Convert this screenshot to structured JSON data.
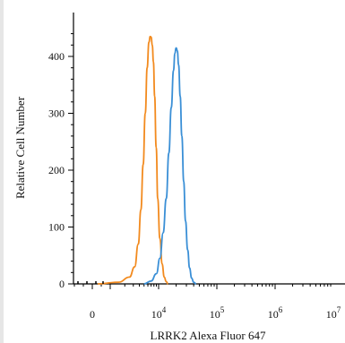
{
  "chart_data": {
    "type": "line",
    "title": "",
    "xlabel": "LRRK2 Alexa Fluor 647",
    "ylabel": "Relative Cell Number",
    "xscale": "biexponential (log above 10^3)",
    "xlim": [
      -1000,
      10000000
    ],
    "ylim": [
      0,
      440
    ],
    "grid": false,
    "legend": "none",
    "yticks": [
      {
        "value": 0,
        "label": "0"
      },
      {
        "value": 100,
        "label": "100"
      },
      {
        "value": 200,
        "label": "200"
      },
      {
        "value": 300,
        "label": "300"
      },
      {
        "value": 400,
        "label": "400"
      }
    ],
    "xticks": [
      {
        "value": 0,
        "base": "0",
        "exp": ""
      },
      {
        "value": 10000,
        "base": "10",
        "exp": "4"
      },
      {
        "value": 100000,
        "base": "10",
        "exp": "5"
      },
      {
        "value": 1000000,
        "base": "10",
        "exp": "6"
      },
      {
        "value": 10000000,
        "base": "10",
        "exp": "7"
      }
    ],
    "series": [
      {
        "color": "#f28a1e",
        "peak_x": 7000,
        "peak_y": 435,
        "x": [
          300,
          1500,
          2500,
          3200,
          3800,
          4300,
          4800,
          5300,
          5800,
          6300,
          6700,
          7000,
          7400,
          7800,
          8300,
          8900,
          9600,
          10500,
          11500,
          12500,
          13500,
          14500
        ],
        "y": [
          0,
          3,
          12,
          30,
          70,
          130,
          210,
          300,
          380,
          425,
          435,
          434,
          420,
          390,
          330,
          240,
          150,
          80,
          35,
          12,
          4,
          0
        ]
      },
      {
        "color": "#3a8fd6",
        "peak_x": 20000,
        "peak_y": 415,
        "x": [
          5000,
          7000,
          9000,
          10500,
          12000,
          13500,
          15000,
          16500,
          18000,
          19000,
          20000,
          21000,
          22000,
          23500,
          25000,
          27000,
          29000,
          31500,
          34000,
          37000,
          40000,
          44000
        ],
        "y": [
          0,
          5,
          18,
          45,
          90,
          150,
          230,
          310,
          375,
          405,
          415,
          410,
          385,
          330,
          260,
          180,
          110,
          60,
          28,
          10,
          3,
          0
        ]
      }
    ]
  }
}
